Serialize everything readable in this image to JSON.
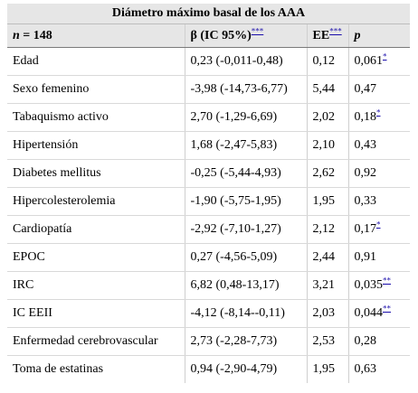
{
  "title": "Diámetro máximo basal de los AAA",
  "headers": {
    "n_label": "n",
    "n_value": " = 148",
    "beta": "β (IC 95%)",
    "beta_note": "***",
    "ee": "EE",
    "ee_note": "***",
    "p": "p"
  },
  "rows": [
    {
      "label": "Edad",
      "beta": "0,23 (-0,011-0,48)",
      "ee": "0,12",
      "p": "0,061",
      "note": "*"
    },
    {
      "label": "Sexo femenino",
      "beta": "-3,98 (-14,73-6,77)",
      "ee": "5,44",
      "p": "0,47",
      "note": ""
    },
    {
      "label": "Tabaquismo activo",
      "beta": "2,70 (-1,29-6,69)",
      "ee": "2,02",
      "p": "0,18",
      "note": "*"
    },
    {
      "label": "Hipertensión",
      "beta": "1,68 (-2,47-5,83)",
      "ee": "2,10",
      "p": "0,43",
      "note": ""
    },
    {
      "label": "Diabetes mellitus",
      "beta": "-0,25 (-5,44-4,93)",
      "ee": "2,62",
      "p": "0,92",
      "note": ""
    },
    {
      "label": "Hipercolesterolemia",
      "beta": "-1,90 (-5,75-1,95)",
      "ee": "1,95",
      "p": "0,33",
      "note": ""
    },
    {
      "label": "Cardiopatía",
      "beta": "-2,92 (-7,10-1,27)",
      "ee": "2,12",
      "p": "0,17",
      "note": "*"
    },
    {
      "label": "EPOC",
      "beta": "0,27 (-4,56-5,09)",
      "ee": "2,44",
      "p": "0,91",
      "note": ""
    },
    {
      "label": "IRC",
      "beta": "6,82 (0,48-13,17)",
      "ee": "3,21",
      "p": "0,035",
      "note": "**"
    },
    {
      "label": "IC EEII",
      "beta": "-4,12 (-8,14--0,11)",
      "ee": "2,03",
      "p": "0,044",
      "note": "**"
    },
    {
      "label": "Enfermedad cerebrovascular",
      "beta": "2,73 (-2,28-7,73)",
      "ee": "2,53",
      "p": "0,28",
      "note": ""
    },
    {
      "label": "Toma de estatinas",
      "beta": "0,94 (-2,90-4,79)",
      "ee": "1,95",
      "p": "0,63",
      "note": ""
    }
  ]
}
